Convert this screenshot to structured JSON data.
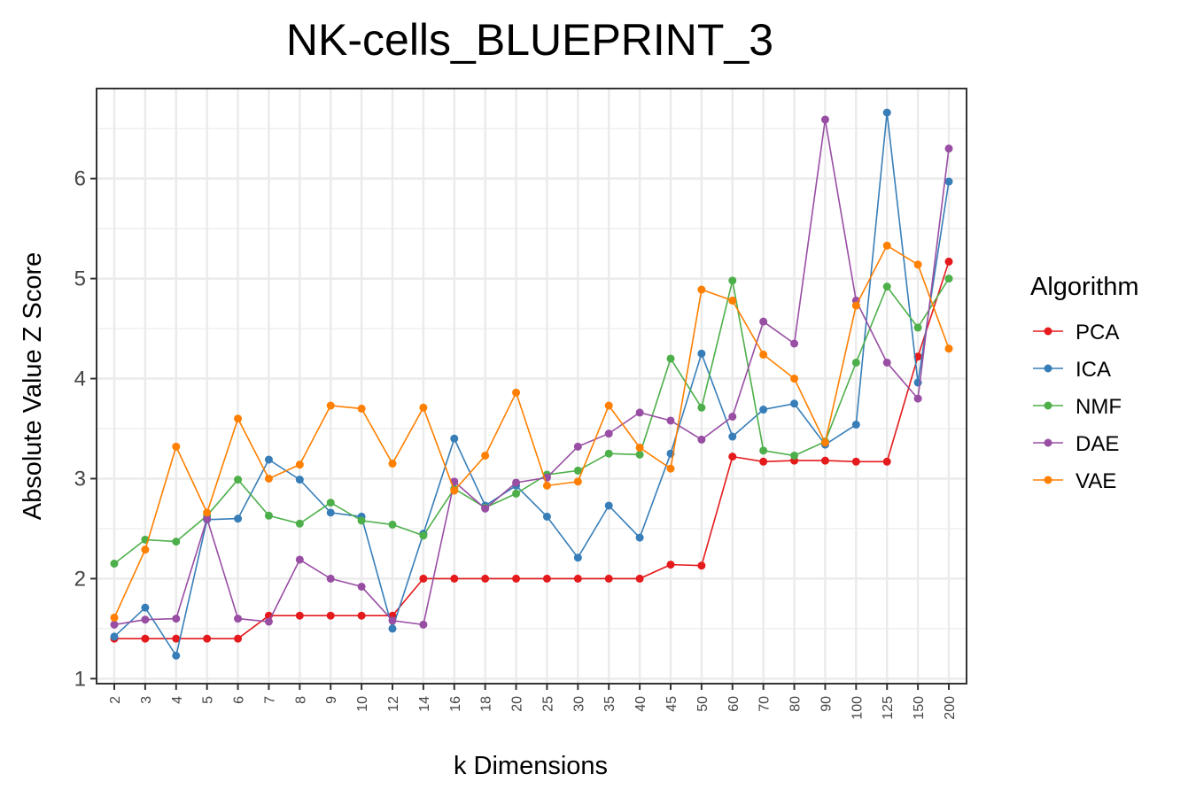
{
  "chart_data": {
    "type": "line",
    "title": "NK-cells_BLUEPRINT_3",
    "xlabel": "k Dimensions",
    "ylabel": "Absolute Value Z Score",
    "categories": [
      "2",
      "3",
      "4",
      "5",
      "6",
      "7",
      "8",
      "9",
      "10",
      "12",
      "14",
      "16",
      "18",
      "20",
      "25",
      "30",
      "35",
      "40",
      "45",
      "50",
      "60",
      "70",
      "80",
      "90",
      "100",
      "125",
      "150",
      "200"
    ],
    "yticks": [
      1,
      2,
      3,
      4,
      5,
      6
    ],
    "ylim": [
      0.95,
      6.9
    ],
    "grid": true,
    "legend": {
      "title": "Algorithm",
      "position": "right"
    },
    "series": [
      {
        "name": "PCA",
        "color": "#e41a1c",
        "values": [
          1.4,
          1.4,
          1.4,
          1.4,
          1.4,
          1.63,
          1.63,
          1.63,
          1.63,
          1.63,
          2.0,
          2.0,
          2.0,
          2.0,
          2.0,
          2.0,
          2.0,
          2.0,
          2.14,
          2.13,
          3.22,
          3.17,
          3.18,
          3.18,
          3.17,
          3.17,
          4.22,
          5.17
        ]
      },
      {
        "name": "ICA",
        "color": "#377eb8",
        "values": [
          1.42,
          1.71,
          1.23,
          2.59,
          2.6,
          3.19,
          2.99,
          2.66,
          2.62,
          1.5,
          2.45,
          3.4,
          2.73,
          2.93,
          2.62,
          2.21,
          2.73,
          2.41,
          3.25,
          4.25,
          3.42,
          3.69,
          3.75,
          3.34,
          3.54,
          6.66,
          3.96,
          5.97
        ]
      },
      {
        "name": "NMF",
        "color": "#4daf4a",
        "values": [
          2.15,
          2.39,
          2.37,
          2.63,
          2.99,
          2.63,
          2.55,
          2.76,
          2.58,
          2.54,
          2.43,
          2.9,
          2.71,
          2.85,
          3.04,
          3.08,
          3.25,
          3.24,
          4.2,
          3.71,
          4.98,
          3.28,
          3.23,
          3.37,
          4.16,
          4.92,
          4.51,
          5.0
        ]
      },
      {
        "name": "DAE",
        "color": "#984ea3",
        "values": [
          1.54,
          1.59,
          1.6,
          2.6,
          1.6,
          1.57,
          2.19,
          2.0,
          1.92,
          1.58,
          1.54,
          2.97,
          2.7,
          2.96,
          3.01,
          3.32,
          3.45,
          3.66,
          3.58,
          3.39,
          3.62,
          4.57,
          4.35,
          6.59,
          4.78,
          4.16,
          3.8,
          6.3
        ]
      },
      {
        "name": "VAE",
        "color": "#ff7f00",
        "values": [
          1.61,
          2.29,
          3.32,
          2.66,
          3.6,
          3.0,
          3.14,
          3.73,
          3.7,
          3.15,
          3.71,
          2.88,
          3.23,
          3.86,
          2.93,
          2.97,
          3.73,
          3.31,
          3.1,
          4.89,
          4.78,
          4.24,
          4.0,
          3.36,
          4.73,
          5.33,
          5.14,
          4.3
        ]
      }
    ]
  }
}
